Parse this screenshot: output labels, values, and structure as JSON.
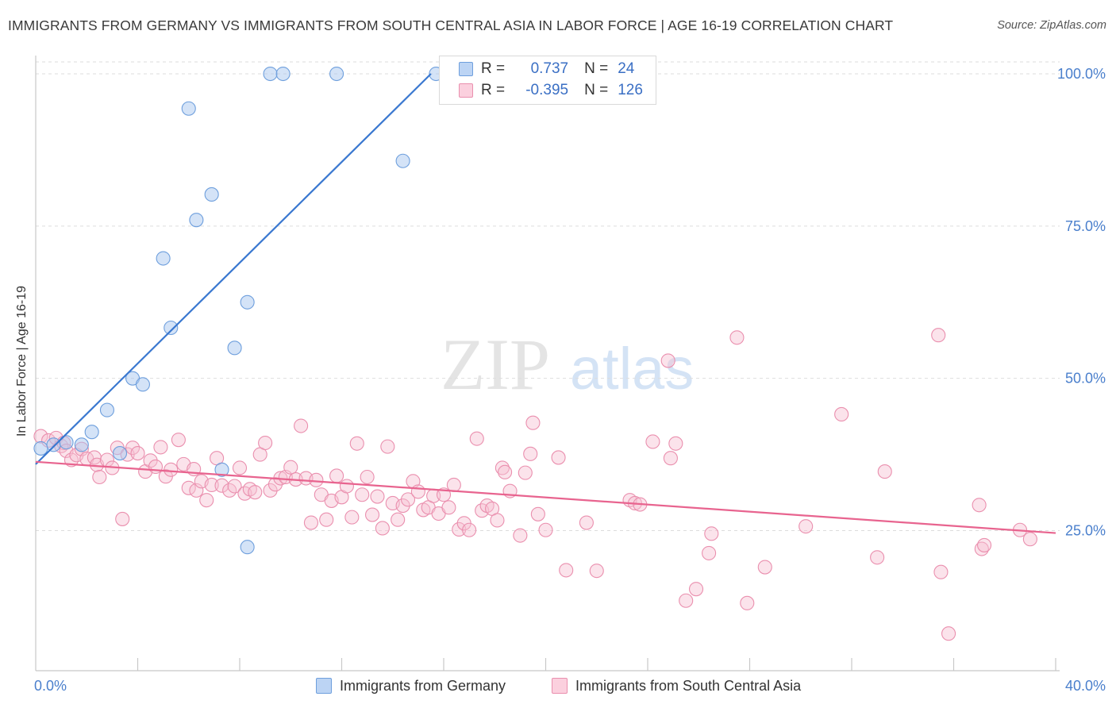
{
  "title": "IMMIGRANTS FROM GERMANY VS IMMIGRANTS FROM SOUTH CENTRAL ASIA IN LABOR FORCE | AGE 16-19 CORRELATION CHART",
  "source": "Source: ZipAtlas.com",
  "watermark": {
    "zip": "ZIP",
    "atlas": "atlas"
  },
  "legend": {
    "r_label": "R =",
    "n_label": "N =",
    "germany": {
      "r": "0.737",
      "n": "24"
    },
    "sca": {
      "r": "-0.395",
      "n": "126"
    }
  },
  "bottom_legend": {
    "germany": "Immigrants from Germany",
    "sca": "Immigrants from South Central Asia"
  },
  "colors": {
    "germany_fill": "#aac8f0",
    "germany_stroke": "#6e9fdd",
    "germany_line": "#3a78d0",
    "sca_fill": "#f6c2d2",
    "sca_stroke": "#ea8fae",
    "sca_line": "#e8648f",
    "tick_label": "#4a7fcc",
    "grid": "#dddddd"
  },
  "chart_data": {
    "type": "scatter",
    "title": "IMMIGRANTS FROM GERMANY VS IMMIGRANTS FROM SOUTH CENTRAL ASIA IN LABOR FORCE | AGE 16-19 CORRELATION CHART",
    "xlabel": "",
    "ylabel": "In Labor Force | Age 16-19",
    "xlim": [
      0,
      40
    ],
    "ylim": [
      2,
      103
    ],
    "x_tick_labels": [
      "0.0%",
      "40.0%"
    ],
    "y_ticks": [
      25,
      50,
      75,
      100
    ],
    "y_tick_labels": [
      "25.0%",
      "50.0%",
      "75.0%",
      "100.0%"
    ],
    "grid": true,
    "legend_position": "top-center",
    "series": [
      {
        "name": "Immigrants from Germany",
        "r": 0.737,
        "n": 24,
        "trend": [
          [
            0,
            35.9
          ],
          [
            15.5,
            100
          ]
        ],
        "points": [
          [
            0.2,
            38.5
          ],
          [
            0.7,
            39.1
          ],
          [
            1.2,
            39.5
          ],
          [
            1.8,
            39.1
          ],
          [
            2.2,
            41.2
          ],
          [
            2.8,
            44.8
          ],
          [
            3.3,
            37.7
          ],
          [
            3.8,
            50.0
          ],
          [
            4.2,
            49.0
          ],
          [
            5.0,
            69.7
          ],
          [
            5.3,
            58.3
          ],
          [
            6.0,
            94.3
          ],
          [
            6.3,
            76.0
          ],
          [
            6.9,
            80.2
          ],
          [
            7.3,
            35.0
          ],
          [
            7.8,
            55.0
          ],
          [
            8.3,
            62.5
          ],
          [
            8.3,
            22.3
          ],
          [
            9.2,
            100
          ],
          [
            9.7,
            100
          ],
          [
            11.8,
            100
          ],
          [
            14.4,
            85.7
          ],
          [
            15.7,
            100
          ],
          [
            16.5,
            100
          ]
        ]
      },
      {
        "name": "Immigrants from South Central Asia",
        "r": -0.395,
        "n": 126,
        "trend": [
          [
            0,
            36.3
          ],
          [
            40,
            24.6
          ]
        ],
        "points": [
          [
            0.2,
            40.5
          ],
          [
            0.5,
            39.8
          ],
          [
            0.8,
            40.2
          ],
          [
            1.0,
            38.9
          ],
          [
            1.1,
            39.4
          ],
          [
            1.2,
            38.1
          ],
          [
            1.4,
            36.6
          ],
          [
            1.6,
            37.4
          ],
          [
            1.8,
            38.4
          ],
          [
            2.0,
            36.8
          ],
          [
            2.3,
            37.0
          ],
          [
            2.4,
            35.8
          ],
          [
            2.5,
            33.8
          ],
          [
            2.8,
            36.6
          ],
          [
            3.0,
            35.3
          ],
          [
            3.2,
            38.6
          ],
          [
            3.4,
            26.9
          ],
          [
            3.6,
            37.5
          ],
          [
            3.8,
            38.6
          ],
          [
            4.0,
            37.7
          ],
          [
            4.3,
            34.7
          ],
          [
            4.5,
            36.5
          ],
          [
            4.7,
            35.5
          ],
          [
            4.9,
            38.7
          ],
          [
            5.1,
            33.9
          ],
          [
            5.3,
            35.0
          ],
          [
            5.6,
            39.9
          ],
          [
            5.8,
            35.9
          ],
          [
            6.0,
            32.0
          ],
          [
            6.2,
            35.1
          ],
          [
            6.3,
            31.6
          ],
          [
            6.5,
            33.1
          ],
          [
            6.7,
            30.0
          ],
          [
            6.9,
            32.5
          ],
          [
            7.1,
            36.9
          ],
          [
            7.3,
            32.4
          ],
          [
            7.6,
            31.6
          ],
          [
            7.8,
            32.3
          ],
          [
            8.0,
            35.3
          ],
          [
            8.2,
            31.1
          ],
          [
            8.4,
            31.8
          ],
          [
            8.6,
            31.3
          ],
          [
            8.8,
            37.5
          ],
          [
            9.0,
            39.4
          ],
          [
            9.2,
            31.6
          ],
          [
            9.4,
            32.6
          ],
          [
            9.6,
            33.6
          ],
          [
            9.8,
            33.8
          ],
          [
            10.0,
            35.4
          ],
          [
            10.2,
            33.4
          ],
          [
            10.4,
            42.2
          ],
          [
            10.6,
            33.6
          ],
          [
            10.8,
            26.3
          ],
          [
            11.0,
            33.3
          ],
          [
            11.2,
            30.9
          ],
          [
            11.4,
            26.8
          ],
          [
            11.6,
            29.9
          ],
          [
            11.8,
            34.0
          ],
          [
            12.0,
            30.5
          ],
          [
            12.2,
            32.3
          ],
          [
            12.4,
            27.2
          ],
          [
            12.6,
            39.3
          ],
          [
            12.8,
            30.9
          ],
          [
            13.0,
            33.8
          ],
          [
            13.2,
            27.6
          ],
          [
            13.4,
            30.6
          ],
          [
            13.6,
            25.4
          ],
          [
            13.8,
            38.8
          ],
          [
            14.0,
            29.5
          ],
          [
            14.2,
            26.8
          ],
          [
            14.4,
            29.1
          ],
          [
            14.6,
            30.1
          ],
          [
            14.8,
            33.1
          ],
          [
            15.0,
            31.4
          ],
          [
            15.2,
            28.4
          ],
          [
            15.4,
            28.8
          ],
          [
            15.6,
            30.7
          ],
          [
            15.8,
            27.8
          ],
          [
            16.0,
            30.9
          ],
          [
            16.2,
            28.8
          ],
          [
            16.4,
            32.5
          ],
          [
            16.6,
            25.2
          ],
          [
            16.8,
            26.2
          ],
          [
            17.0,
            25.1
          ],
          [
            17.3,
            40.1
          ],
          [
            17.5,
            28.3
          ],
          [
            17.7,
            29.1
          ],
          [
            17.9,
            28.6
          ],
          [
            18.1,
            26.7
          ],
          [
            18.3,
            35.3
          ],
          [
            18.4,
            34.6
          ],
          [
            18.6,
            31.5
          ],
          [
            19.0,
            24.2
          ],
          [
            19.2,
            34.5
          ],
          [
            19.4,
            37.6
          ],
          [
            19.5,
            42.7
          ],
          [
            19.7,
            27.7
          ],
          [
            20.0,
            25.1
          ],
          [
            20.5,
            37.0
          ],
          [
            20.8,
            18.5
          ],
          [
            21.6,
            26.3
          ],
          [
            22.0,
            18.4
          ],
          [
            23.3,
            30.0
          ],
          [
            23.5,
            29.5
          ],
          [
            23.7,
            29.3
          ],
          [
            24.2,
            39.6
          ],
          [
            24.8,
            52.9
          ],
          [
            24.9,
            36.9
          ],
          [
            25.1,
            39.3
          ],
          [
            25.5,
            13.5
          ],
          [
            25.9,
            15.4
          ],
          [
            26.4,
            21.3
          ],
          [
            26.5,
            24.5
          ],
          [
            27.5,
            56.7
          ],
          [
            27.9,
            13.1
          ],
          [
            28.6,
            19.0
          ],
          [
            30.2,
            25.7
          ],
          [
            31.6,
            44.1
          ],
          [
            33.0,
            20.6
          ],
          [
            33.3,
            34.7
          ],
          [
            35.4,
            57.1
          ],
          [
            35.5,
            18.2
          ],
          [
            35.8,
            8.1
          ],
          [
            37.0,
            29.2
          ],
          [
            37.1,
            22.0
          ],
          [
            37.2,
            22.6
          ],
          [
            38.6,
            25.1
          ],
          [
            39.0,
            23.6
          ]
        ]
      }
    ]
  }
}
